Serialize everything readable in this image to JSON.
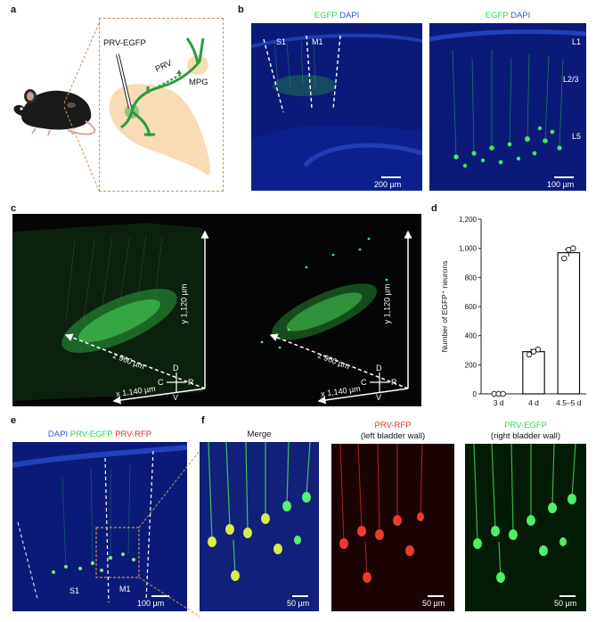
{
  "panel_labels": {
    "a": "a",
    "b": "b",
    "c": "c",
    "d": "d",
    "e": "e",
    "f": "f"
  },
  "panel_a": {
    "virus_label": "PRV-EGFP",
    "prv_label": "PRV",
    "mpg_label": "MPG",
    "colors": {
      "neuron": "#2f9a3c",
      "brain": "#f7dcb5",
      "inset_border": "#c8905a"
    }
  },
  "panel_b": {
    "left_title_egfp": "EGFP",
    "left_title_dapi": "DAPI",
    "right_title_egfp": "EGFP",
    "right_title_dapi": "DAPI",
    "s1": "S1",
    "m1": "M1",
    "scale_left": "200 µm",
    "scale_right": "100 µm",
    "layer_l1": "L1",
    "layer_l23": "L2/3",
    "layer_l5": "L5"
  },
  "panel_c": {
    "axis_y": "y  1,120 µm",
    "axis_z": "z  960 µm",
    "axis_x": "x  1,140 µm",
    "axis_y_2": "y  1,120 µm",
    "axis_z_2": "z  960 µm",
    "axis_x_2": "x  1,140 µm",
    "compass": {
      "d": "D",
      "v": "V",
      "c": "C",
      "r": "R"
    }
  },
  "panel_e": {
    "title_dapi": "DAPI",
    "title_prv_egfp": "PRV-EGFP",
    "title_prv_rfp": "PRV-RFP",
    "s1": "S1",
    "m1": "M1",
    "scale": "100 µm"
  },
  "panel_f": {
    "merge_title": "Merge",
    "rfp_title": "PRV-RFP",
    "rfp_subtitle": "(left bladder wall)",
    "egfp_title": "PRV-EGFP",
    "egfp_subtitle": "(right bladder wall)",
    "scale_1": "50 µm",
    "scale_2": "50 µm",
    "scale_3": "50 µm"
  },
  "chart_data": {
    "type": "bar",
    "categories": [
      "3 d",
      "4 d",
      "4.5–5 d"
    ],
    "values": [
      0,
      290,
      970
    ],
    "errors": [
      0,
      15,
      25
    ],
    "points": [
      [
        0,
        0,
        0
      ],
      [
        270,
        290,
        305
      ],
      [
        930,
        990,
        1000
      ]
    ],
    "ylabel": "Number of EGFP⁺ neurons",
    "yticks": [
      "0",
      "200",
      "400",
      "600",
      "800",
      "1,000",
      "1,200"
    ],
    "ylim": [
      0,
      1200
    ],
    "grid": false
  }
}
